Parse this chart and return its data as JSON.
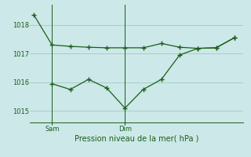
{
  "background_color": "#cce8e8",
  "grid_color": "#aacccc",
  "line_color": "#1a5e1a",
  "title": "Pression niveau de la mer( hPa )",
  "ylim": [
    1014.6,
    1018.7
  ],
  "yticks": [
    1015,
    1016,
    1017,
    1018
  ],
  "line1_x": [
    0,
    1,
    2,
    3,
    4,
    5,
    6,
    7,
    8,
    9,
    10,
    11
  ],
  "line1_y": [
    1018.35,
    1017.3,
    1017.25,
    1017.22,
    1017.2,
    1017.2,
    1017.2,
    1017.35,
    1017.22,
    1017.18,
    1017.2,
    1017.55
  ],
  "line2_x": [
    1,
    2,
    3,
    4,
    5,
    6,
    7,
    8,
    9,
    10,
    11
  ],
  "line2_y": [
    1015.95,
    1015.75,
    1016.1,
    1015.8,
    1015.1,
    1015.75,
    1016.1,
    1016.95,
    1017.18,
    1017.2,
    1017.55
  ],
  "sam_x": 1,
  "dim_x": 5,
  "xlim": [
    -0.2,
    11.5
  ],
  "figsize": [
    3.2,
    2.0
  ],
  "dpi": 100
}
